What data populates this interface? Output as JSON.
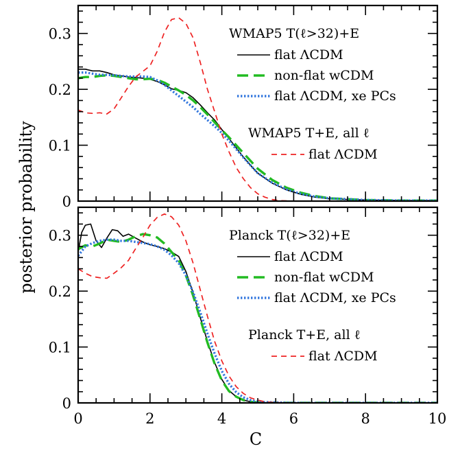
{
  "figure": {
    "ylabel": "posterior probability",
    "xlabel": "C"
  },
  "chart_data": [
    {
      "type": "line",
      "panel": "top",
      "xlim": [
        0,
        10
      ],
      "ylim": [
        0,
        0.35
      ],
      "x_ticks_major": [
        0,
        2,
        4,
        6,
        8,
        10
      ],
      "y_ticks_major": [
        0,
        0.1,
        0.2,
        0.3
      ],
      "y_tick_labels": [
        "0",
        "0.1",
        "0.2",
        "0.3"
      ],
      "legend_position": "top-right",
      "legend_group_1_title": "WMAP5 T(ℓ>32)+E",
      "legend_group_2_title": "WMAP5 T+E, all ℓ",
      "series": [
        {
          "name": "flat ΛCDM",
          "group": 1,
          "color": "#000000",
          "style": "solid",
          "x": [
            0,
            0.2,
            0.4,
            0.6,
            0.8,
            1.0,
            1.2,
            1.4,
            1.6,
            1.8,
            2.0,
            2.2,
            2.4,
            2.6,
            2.8,
            3.0,
            3.2,
            3.4,
            3.6,
            3.8,
            4.0,
            4.2,
            4.4,
            4.6,
            4.8,
            5.0,
            5.4,
            5.8,
            6.2,
            6.6,
            7.0,
            8.0,
            9.0,
            10.0
          ],
          "y": [
            0.236,
            0.236,
            0.233,
            0.233,
            0.23,
            0.226,
            0.224,
            0.222,
            0.221,
            0.22,
            0.218,
            0.214,
            0.208,
            0.201,
            0.198,
            0.194,
            0.185,
            0.172,
            0.158,
            0.145,
            0.128,
            0.112,
            0.095,
            0.079,
            0.064,
            0.05,
            0.032,
            0.02,
            0.012,
            0.007,
            0.004,
            0.002,
            0.001,
            0.001
          ]
        },
        {
          "name": "non-flat wCDM",
          "group": 1,
          "color": "#22bb22",
          "style": "long-dash",
          "x": [
            0,
            0.2,
            0.4,
            0.6,
            0.8,
            1.0,
            1.2,
            1.4,
            1.6,
            1.8,
            2.0,
            2.2,
            2.4,
            2.6,
            2.8,
            3.0,
            3.2,
            3.4,
            3.6,
            3.8,
            4.0,
            4.2,
            4.4,
            4.6,
            4.8,
            5.0,
            5.4,
            5.8,
            6.2,
            6.6,
            7.0,
            8.0,
            9.0,
            10.0
          ],
          "y": [
            0.22,
            0.222,
            0.222,
            0.224,
            0.225,
            0.224,
            0.222,
            0.22,
            0.218,
            0.218,
            0.219,
            0.217,
            0.212,
            0.205,
            0.198,
            0.19,
            0.18,
            0.168,
            0.155,
            0.141,
            0.127,
            0.114,
            0.1,
            0.086,
            0.072,
            0.058,
            0.038,
            0.024,
            0.015,
            0.009,
            0.005,
            0.002,
            0.001,
            0.001
          ]
        },
        {
          "name": "flat ΛCDM, xe PCs",
          "group": 1,
          "color": "#3377dd",
          "style": "dotted",
          "x": [
            0,
            0.2,
            0.4,
            0.6,
            0.8,
            1.0,
            1.2,
            1.4,
            1.6,
            1.8,
            2.0,
            2.2,
            2.4,
            2.6,
            2.8,
            3.0,
            3.2,
            3.4,
            3.6,
            3.8,
            4.0,
            4.2,
            4.4,
            4.6,
            4.8,
            5.0,
            5.4,
            5.8,
            6.2,
            6.6,
            7.0,
            8.0,
            9.0,
            10.0
          ],
          "y": [
            0.23,
            0.23,
            0.228,
            0.226,
            0.226,
            0.225,
            0.224,
            0.223,
            0.223,
            0.223,
            0.222,
            0.216,
            0.208,
            0.198,
            0.188,
            0.178,
            0.168,
            0.156,
            0.145,
            0.134,
            0.122,
            0.108,
            0.093,
            0.078,
            0.064,
            0.05,
            0.033,
            0.021,
            0.013,
            0.008,
            0.005,
            0.002,
            0.001,
            0.001
          ]
        },
        {
          "name": "flat ΛCDM",
          "group": 2,
          "color": "#ee2222",
          "style": "dashed",
          "x": [
            0,
            0.2,
            0.4,
            0.6,
            0.8,
            1.0,
            1.2,
            1.4,
            1.6,
            1.8,
            2.0,
            2.2,
            2.4,
            2.6,
            2.8,
            3.0,
            3.2,
            3.4,
            3.6,
            3.8,
            4.0,
            4.2,
            4.4,
            4.6,
            4.8,
            5.0,
            5.2,
            5.4,
            5.6,
            5.8,
            6.0
          ],
          "y": [
            0.163,
            0.158,
            0.157,
            0.158,
            0.156,
            0.165,
            0.185,
            0.205,
            0.222,
            0.232,
            0.242,
            0.268,
            0.302,
            0.325,
            0.328,
            0.318,
            0.292,
            0.248,
            0.2,
            0.16,
            0.12,
            0.088,
            0.06,
            0.04,
            0.024,
            0.013,
            0.007,
            0.003,
            0.001,
            0.0005,
            0.0
          ]
        }
      ]
    },
    {
      "type": "line",
      "panel": "bottom",
      "xlim": [
        0,
        10
      ],
      "ylim": [
        0,
        0.35
      ],
      "x_ticks_major": [
        0,
        2,
        4,
        6,
        8,
        10
      ],
      "x_tick_labels": [
        "0",
        "2",
        "4",
        "6",
        "8",
        "10"
      ],
      "y_ticks_major": [
        0,
        0.1,
        0.2,
        0.3
      ],
      "y_tick_labels": [
        "0",
        "0.1",
        "0.2",
        "0.3"
      ],
      "legend_position": "top-right",
      "legend_group_1_title": "Planck T(ℓ>32)+E",
      "legend_group_2_title": "Planck T+E, all ℓ",
      "series": [
        {
          "name": "flat ΛCDM",
          "group": 1,
          "color": "#000000",
          "style": "solid",
          "x": [
            0,
            0.1,
            0.2,
            0.35,
            0.5,
            0.65,
            0.8,
            0.95,
            1.1,
            1.25,
            1.4,
            1.6,
            1.8,
            2.0,
            2.2,
            2.4,
            2.6,
            2.8,
            3.0,
            3.2,
            3.4,
            3.6,
            3.8,
            4.0,
            4.2,
            4.4,
            4.6,
            4.8,
            5.0,
            5.4,
            6.0,
            7.0,
            10.0
          ],
          "y": [
            0.27,
            0.305,
            0.318,
            0.32,
            0.29,
            0.278,
            0.295,
            0.31,
            0.308,
            0.298,
            0.302,
            0.295,
            0.288,
            0.283,
            0.28,
            0.276,
            0.27,
            0.262,
            0.235,
            0.197,
            0.152,
            0.11,
            0.072,
            0.042,
            0.022,
            0.011,
            0.005,
            0.002,
            0.001,
            0.0,
            0.0,
            0.0,
            0.0
          ]
        },
        {
          "name": "non-flat wCDM",
          "group": 1,
          "color": "#22bb22",
          "style": "long-dash",
          "x": [
            0,
            0.2,
            0.4,
            0.6,
            0.8,
            1.0,
            1.2,
            1.4,
            1.6,
            1.8,
            2.0,
            2.2,
            2.4,
            2.6,
            2.8,
            3.0,
            3.2,
            3.4,
            3.6,
            3.8,
            4.0,
            4.2,
            4.4,
            4.6,
            4.8,
            5.0,
            5.4,
            6.0,
            7.0,
            10.0
          ],
          "y": [
            0.275,
            0.282,
            0.28,
            0.285,
            0.292,
            0.29,
            0.288,
            0.292,
            0.298,
            0.302,
            0.3,
            0.296,
            0.285,
            0.27,
            0.255,
            0.228,
            0.192,
            0.15,
            0.108,
            0.07,
            0.04,
            0.021,
            0.011,
            0.005,
            0.002,
            0.001,
            0.0,
            0.0,
            0.0,
            0.0
          ]
        },
        {
          "name": "flat ΛCDM, xe PCs",
          "group": 1,
          "color": "#3377dd",
          "style": "dotted",
          "x": [
            0,
            0.2,
            0.4,
            0.6,
            0.8,
            1.0,
            1.2,
            1.4,
            1.6,
            1.8,
            2.0,
            2.2,
            2.4,
            2.6,
            2.8,
            3.0,
            3.2,
            3.4,
            3.6,
            3.8,
            4.0,
            4.2,
            4.4,
            4.6,
            4.8,
            5.0,
            5.4,
            6.0,
            7.0,
            10.0
          ],
          "y": [
            0.263,
            0.28,
            0.286,
            0.29,
            0.292,
            0.292,
            0.29,
            0.29,
            0.288,
            0.286,
            0.284,
            0.28,
            0.274,
            0.264,
            0.25,
            0.228,
            0.198,
            0.162,
            0.124,
            0.088,
            0.057,
            0.034,
            0.019,
            0.01,
            0.005,
            0.002,
            0.001,
            0.0,
            0.0,
            0.0
          ]
        },
        {
          "name": "flat ΛCDM",
          "group": 2,
          "color": "#ee2222",
          "style": "dashed",
          "x": [
            0,
            0.2,
            0.4,
            0.6,
            0.8,
            1.0,
            1.2,
            1.4,
            1.6,
            1.8,
            2.0,
            2.2,
            2.4,
            2.6,
            2.8,
            3.0,
            3.2,
            3.4,
            3.6,
            3.8,
            4.0,
            4.2,
            4.4,
            4.6,
            4.8,
            5.0,
            5.2,
            5.4,
            5.6,
            5.8,
            6.0
          ],
          "y": [
            0.24,
            0.232,
            0.226,
            0.224,
            0.223,
            0.232,
            0.242,
            0.255,
            0.276,
            0.296,
            0.318,
            0.332,
            0.338,
            0.333,
            0.318,
            0.29,
            0.25,
            0.202,
            0.155,
            0.11,
            0.075,
            0.048,
            0.029,
            0.017,
            0.009,
            0.005,
            0.002,
            0.001,
            0.0005,
            0.0,
            0.0
          ]
        }
      ]
    }
  ]
}
